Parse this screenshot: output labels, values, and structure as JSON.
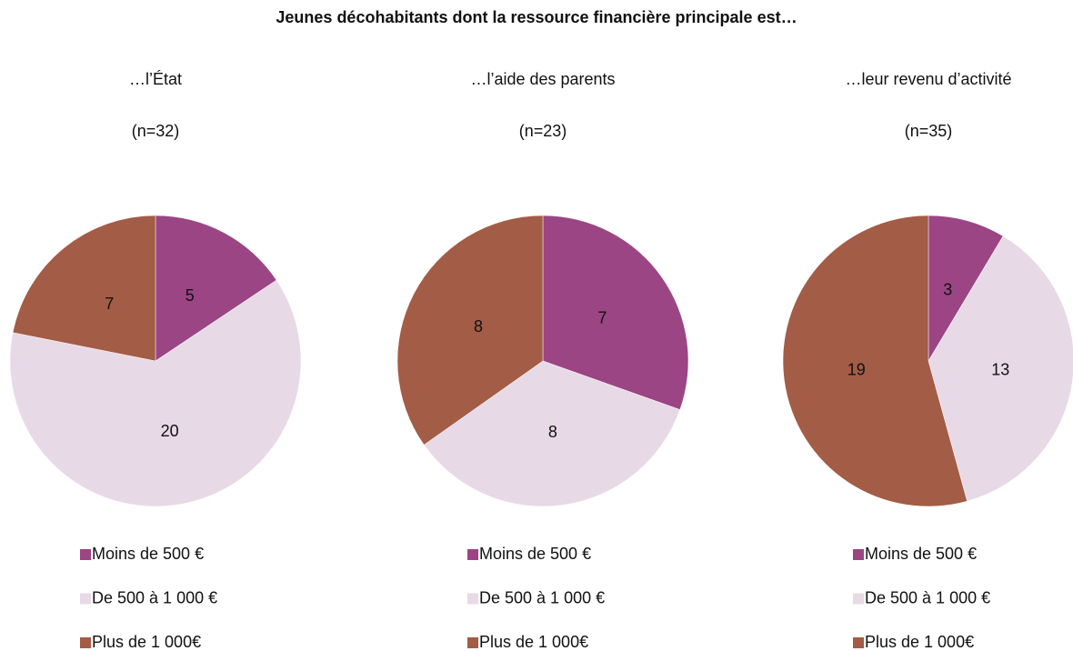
{
  "title": "Jeunes décohabitants dont la ressource financière principale est…",
  "chart_data": [
    {
      "type": "pie",
      "title": "…l’État",
      "subtitle": "(n=32)",
      "categories": [
        "Moins de 500 €",
        "De 500 à 1 000 €",
        "Plus de 1 000€"
      ],
      "values": [
        5,
        20,
        7
      ],
      "colors": [
        "#9b4584",
        "#e8d9e6",
        "#a35c45"
      ]
    },
    {
      "type": "pie",
      "title": "…l’aide des parents",
      "subtitle": "(n=23)",
      "categories": [
        "Moins de 500 €",
        "De 500 à 1 000 €",
        "Plus de 1 000€"
      ],
      "values": [
        7,
        8,
        8
      ],
      "colors": [
        "#9b4584",
        "#e8d9e6",
        "#a35c45"
      ]
    },
    {
      "type": "pie",
      "title": "…leur revenu d’activité",
      "subtitle": "(n=35)",
      "categories": [
        "Moins de 500 €",
        "De 500 à 1 000 €",
        "Plus de 1 000€"
      ],
      "values": [
        3,
        13,
        19
      ],
      "colors": [
        "#9b4584",
        "#e8d9e6",
        "#a35c45"
      ]
    }
  ]
}
